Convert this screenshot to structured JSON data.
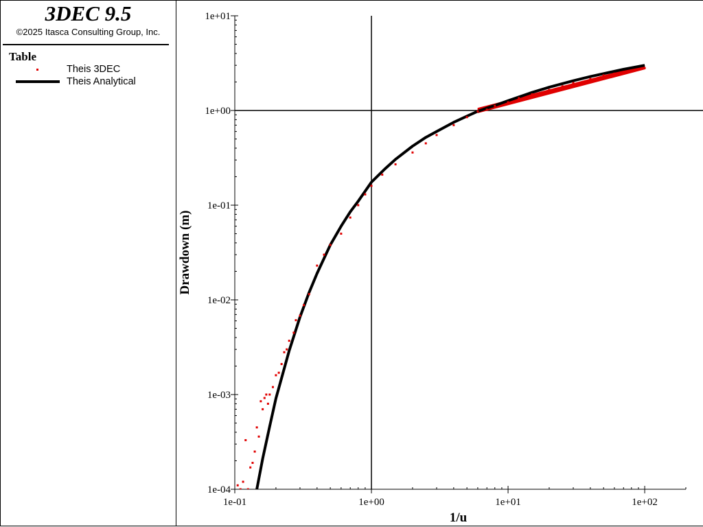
{
  "panel": {
    "app_title": "3DEC 9.5",
    "copyright": "©2025 Itasca Consulting Group, Inc.",
    "legend_heading": "Table"
  },
  "chart_data": {
    "type": "scatter",
    "xlabel": "1/u",
    "ylabel": "Drawdown (m)",
    "xscale": "log",
    "yscale": "log",
    "xlim": [
      0.1,
      200
    ],
    "ylim": [
      0.0001,
      10
    ],
    "x_ticks": [
      "1e-01",
      "1e+00",
      "1e+01",
      "1e+02"
    ],
    "y_ticks": [
      "1e-04",
      "1e-03",
      "1e-02",
      "1e-01",
      "1e+00",
      "1e+01"
    ],
    "reference_lines": {
      "x": 1,
      "y": 1
    },
    "grid": false,
    "series": [
      {
        "name": "Theis 3DEC",
        "style": "markers",
        "color": "#e00000",
        "points": [
          [
            0.105,
            0.00011
          ],
          [
            0.11,
            0.0001
          ],
          [
            0.115,
            0.00012
          ],
          [
            0.12,
            0.00033
          ],
          [
            0.125,
            0.0001
          ],
          [
            0.13,
            0.00017
          ],
          [
            0.135,
            0.00019
          ],
          [
            0.14,
            0.00025
          ],
          [
            0.145,
            0.00045
          ],
          [
            0.15,
            0.00036
          ],
          [
            0.155,
            0.00085
          ],
          [
            0.16,
            0.0007
          ],
          [
            0.165,
            0.00092
          ],
          [
            0.17,
            0.001
          ],
          [
            0.175,
            0.0008
          ],
          [
            0.18,
            0.001
          ],
          [
            0.19,
            0.0012
          ],
          [
            0.2,
            0.0016
          ],
          [
            0.21,
            0.0017
          ],
          [
            0.22,
            0.0021
          ],
          [
            0.23,
            0.0028
          ],
          [
            0.24,
            0.003
          ],
          [
            0.25,
            0.0037
          ],
          [
            0.27,
            0.0045
          ],
          [
            0.28,
            0.0061
          ],
          [
            0.3,
            0.0068
          ],
          [
            0.32,
            0.0088
          ],
          [
            0.35,
            0.0115
          ],
          [
            0.4,
            0.023
          ],
          [
            0.45,
            0.03
          ],
          [
            0.5,
            0.038
          ],
          [
            0.6,
            0.05
          ],
          [
            0.7,
            0.074
          ],
          [
            0.8,
            0.1
          ],
          [
            0.9,
            0.13
          ],
          [
            1.0,
            0.16
          ],
          [
            1.2,
            0.21
          ],
          [
            1.5,
            0.27
          ],
          [
            2.0,
            0.36
          ],
          [
            2.5,
            0.45
          ],
          [
            3.0,
            0.55
          ],
          [
            4.0,
            0.7
          ],
          [
            5.0,
            0.85
          ],
          [
            6.0,
            0.98
          ],
          [
            7.0,
            1.02
          ],
          [
            8.0,
            1.12
          ],
          [
            10.0,
            1.22
          ],
          [
            12.0,
            1.35
          ],
          [
            15.0,
            1.48
          ],
          [
            20.0,
            1.65
          ],
          [
            25.0,
            1.8
          ],
          [
            30.0,
            1.95
          ],
          [
            40.0,
            2.15
          ],
          [
            50.0,
            2.35
          ],
          [
            60.0,
            2.45
          ],
          [
            70.0,
            2.55
          ],
          [
            80.0,
            2.65
          ],
          [
            90.0,
            2.72
          ],
          [
            100.0,
            2.8
          ]
        ],
        "bands": [
          {
            "x_from": 6.0,
            "x_to": 100.0,
            "y_low_at_from": 0.95,
            "y_low_at_to": 2.75,
            "y_high_at_from": 1.05,
            "y_high_at_to": 3.0
          }
        ]
      },
      {
        "name": "Theis Analytical",
        "style": "line",
        "color": "#000000",
        "points": [
          [
            0.145,
            0.0001
          ],
          [
            0.16,
            0.00021
          ],
          [
            0.18,
            0.00046
          ],
          [
            0.2,
            0.00091
          ],
          [
            0.25,
            0.0029
          ],
          [
            0.3,
            0.0066
          ],
          [
            0.35,
            0.012
          ],
          [
            0.4,
            0.019
          ],
          [
            0.5,
            0.038
          ],
          [
            0.6,
            0.06
          ],
          [
            0.7,
            0.085
          ],
          [
            0.8,
            0.11
          ],
          [
            1.0,
            0.175
          ],
          [
            1.25,
            0.24
          ],
          [
            1.5,
            0.305
          ],
          [
            2.0,
            0.42
          ],
          [
            2.5,
            0.52
          ],
          [
            3.0,
            0.6
          ],
          [
            4.0,
            0.75
          ],
          [
            5.0,
            0.87
          ],
          [
            6.0,
            0.98
          ],
          [
            7.0,
            1.06
          ],
          [
            8.0,
            1.13
          ],
          [
            10.0,
            1.27
          ],
          [
            15.0,
            1.55
          ],
          [
            20.0,
            1.76
          ],
          [
            30.0,
            2.06
          ],
          [
            40.0,
            2.28
          ],
          [
            50.0,
            2.45
          ],
          [
            70.0,
            2.72
          ],
          [
            100.0,
            3.0
          ]
        ]
      }
    ]
  }
}
